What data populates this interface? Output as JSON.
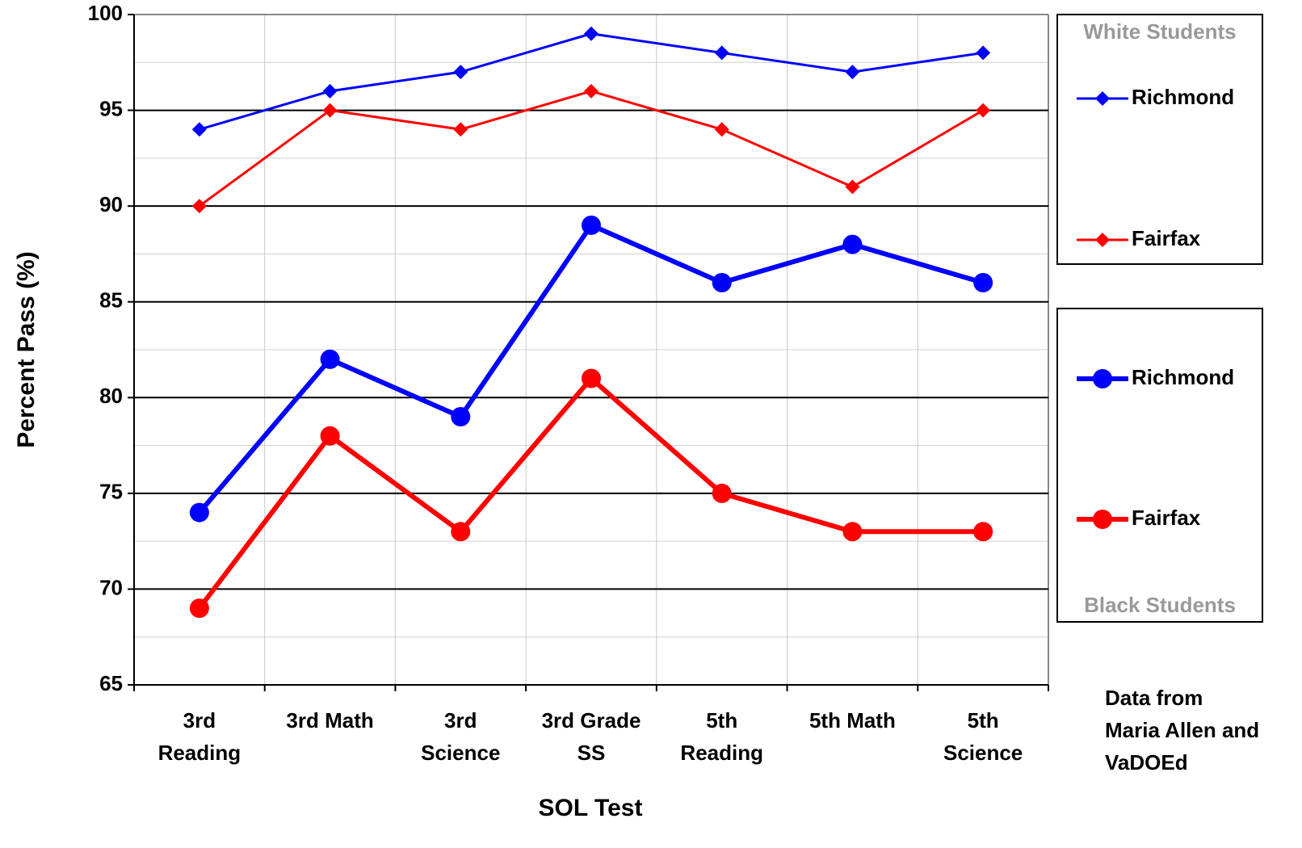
{
  "chart_data": {
    "type": "line",
    "x_label": "SOL Test",
    "y_label": "Percent Pass (%)",
    "categories": [
      [
        "3rd",
        "Reading"
      ],
      [
        "3rd Math"
      ],
      [
        "3rd",
        "Science"
      ],
      [
        "3rd Grade",
        "SS"
      ],
      [
        "5th",
        "Reading"
      ],
      [
        "5th Math"
      ],
      [
        "5th",
        "Science"
      ]
    ],
    "ylim": [
      65,
      100
    ],
    "yticks": [
      65,
      70,
      75,
      80,
      85,
      90,
      95,
      100
    ],
    "grid": true,
    "groups": [
      {
        "name": "White Students",
        "marker": "diamond",
        "series": [
          {
            "name": "Richmond",
            "color": "#0000ff",
            "values": [
              94,
              96,
              97,
              99,
              98,
              97,
              98
            ]
          },
          {
            "name": "Fairfax",
            "color": "#ff0000",
            "values": [
              90,
              95,
              94,
              96,
              94,
              91,
              95
            ]
          }
        ]
      },
      {
        "name": "Black Students",
        "marker": "circle",
        "series": [
          {
            "name": "Richmond",
            "color": "#0000ff",
            "values": [
              74,
              82,
              79,
              89,
              86,
              88,
              86
            ]
          },
          {
            "name": "Fairfax",
            "color": "#ff0000",
            "values": [
              69,
              78,
              73,
              81,
              75,
              73,
              73
            ]
          }
        ]
      }
    ],
    "annotation": [
      "Data from",
      "Maria Allen and",
      "VaDOEd"
    ]
  }
}
